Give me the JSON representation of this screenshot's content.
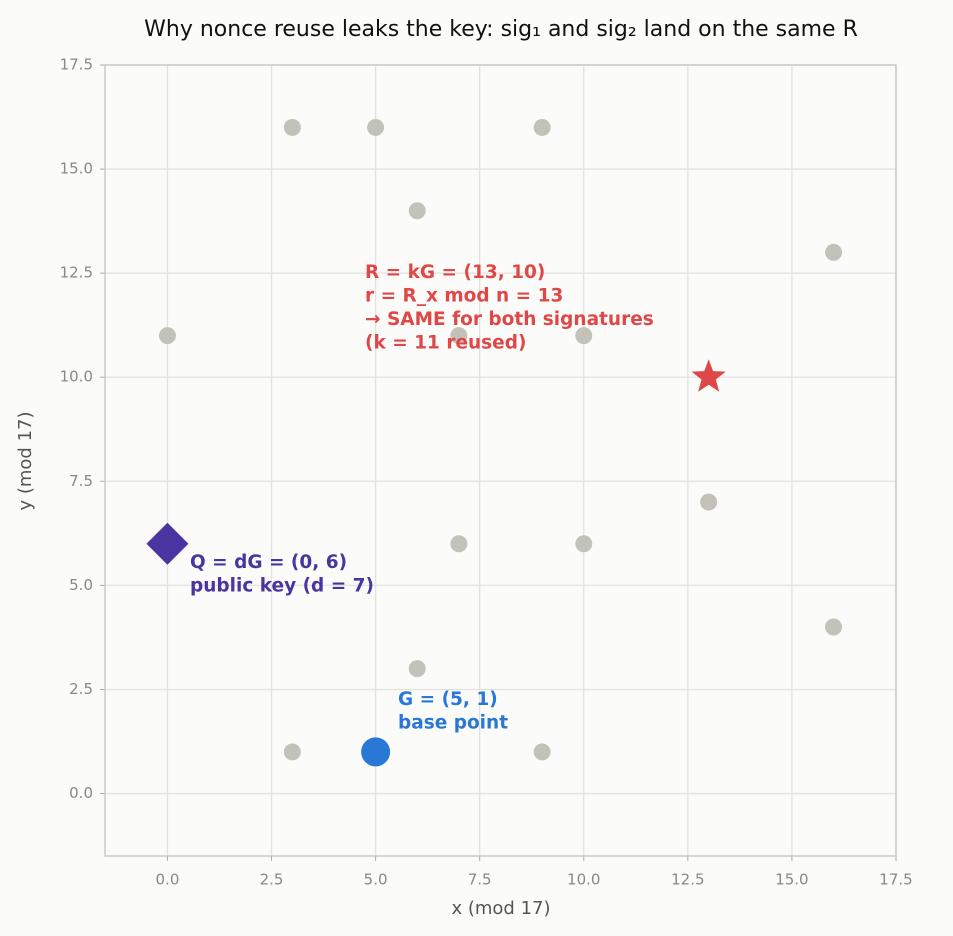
{
  "chart_data": {
    "type": "scatter",
    "title": "Why nonce reuse leaks the key: sig₁ and sig₂ land on the same R",
    "x_label": "x (mod 17)",
    "y_label": "y (mod 17)",
    "xlim": [
      -1.5,
      17.5
    ],
    "ylim": [
      -1.5,
      17.5
    ],
    "xticks": [
      {
        "value": 0,
        "label": "0.0"
      },
      {
        "value": 2.5,
        "label": "2.5"
      },
      {
        "value": 5,
        "label": "5.0"
      },
      {
        "value": 7.5,
        "label": "7.5"
      },
      {
        "value": 10,
        "label": "10.0"
      },
      {
        "value": 12.5,
        "label": "12.5"
      },
      {
        "value": 15,
        "label": "15.0"
      },
      {
        "value": 17.5,
        "label": "17.5"
      }
    ],
    "yticks": [
      {
        "value": 0,
        "label": "0.0"
      },
      {
        "value": 2.5,
        "label": "2.5"
      },
      {
        "value": 5,
        "label": "5.0"
      },
      {
        "value": 7.5,
        "label": "7.5"
      },
      {
        "value": 10,
        "label": "10.0"
      },
      {
        "value": 12.5,
        "label": "12.5"
      },
      {
        "value": 15,
        "label": "15.0"
      },
      {
        "value": 17.5,
        "label": "17.5"
      }
    ],
    "grid": true,
    "series": [
      {
        "color": "#c2c2b8",
        "marker": "circle",
        "x": [
          3,
          5,
          9,
          6,
          16,
          0,
          7,
          10,
          13,
          7,
          10,
          16,
          6,
          3,
          9
        ],
        "values": [
          16,
          16,
          16,
          14,
          13,
          11,
          11,
          11,
          7,
          6,
          6,
          4,
          3,
          1,
          1
        ]
      },
      {
        "color": "#2a78d6",
        "marker": "big-circle",
        "x": [
          5
        ],
        "values": [
          1
        ]
      },
      {
        "color": "#4a35a0",
        "marker": "diamond",
        "x": [
          0
        ],
        "values": [
          6
        ]
      },
      {
        "color": "#e04848",
        "marker": "star",
        "x": [
          13
        ],
        "values": [
          10
        ]
      }
    ],
    "annotations": [
      {
        "color": "#e04848",
        "lines": [
          "R = kG = (13, 10)",
          "r = R_x mod n = 13",
          "→ SAME for both signatures",
          "(k = 11 reused)"
        ]
      },
      {
        "color": "#4a35a0",
        "lines": [
          "Q = dG = (0, 6)",
          "public key (d = 7)"
        ]
      },
      {
        "color": "#2a78d6",
        "lines": [
          "G = (5, 1)",
          "base point"
        ]
      }
    ]
  }
}
